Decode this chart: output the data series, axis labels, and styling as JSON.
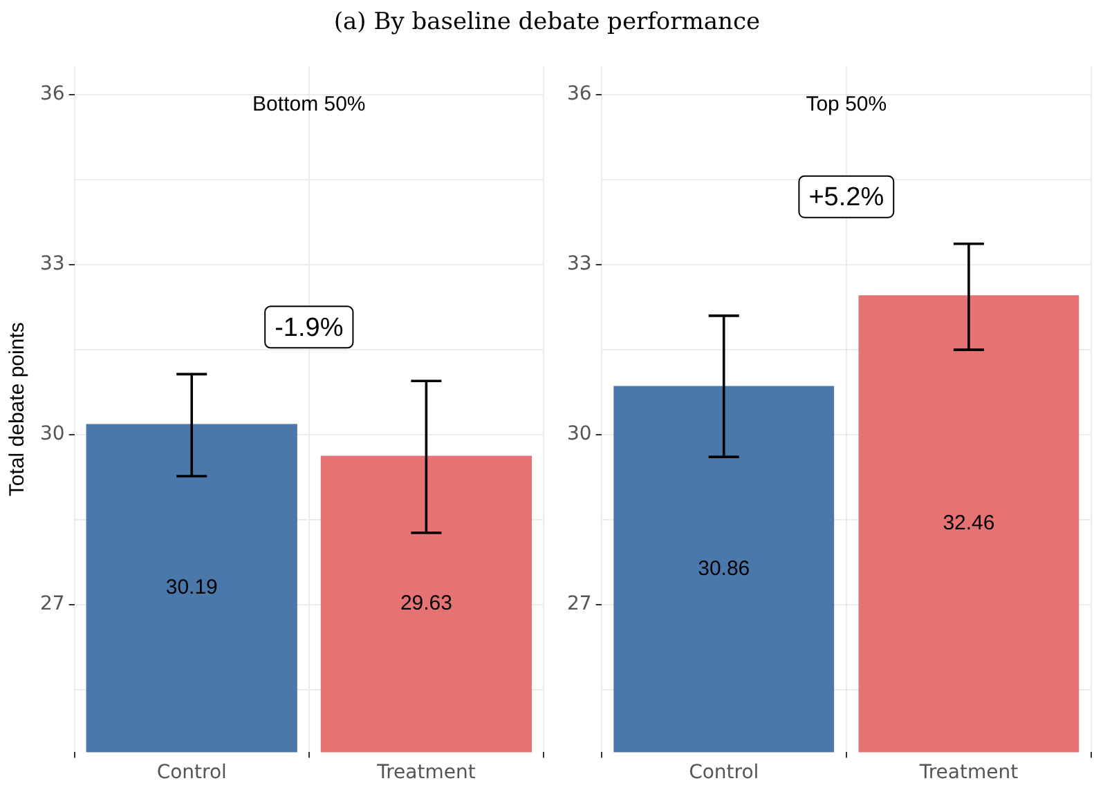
{
  "chart_data": [
    {
      "type": "bar",
      "title": "(a) By baseline debate performance",
      "subtitle": "Bottom 50%",
      "ylabel": "Total debate points",
      "categories": [
        "Control",
        "Treatment"
      ],
      "values": [
        30.19,
        29.63
      ],
      "colors": [
        "#4a78ab",
        "#e57373"
      ],
      "errors": [
        [
          29.27,
          31.07
        ],
        [
          28.27,
          30.95
        ]
      ],
      "ylim": [
        24.4,
        36.5
      ],
      "yticks": [
        {
          "value": 25.5,
          "label": null
        },
        27,
        {
          "value": 28.5,
          "label": null
        },
        30,
        {
          "value": 31.5,
          "label": null
        },
        33,
        {
          "value": 34.5,
          "label": null
        },
        36
      ],
      "grid": true,
      "data_labels": true,
      "annotations": [
        "-1.9%"
      ]
    },
    {
      "type": "bar",
      "subtitle": "Top 50%",
      "categories": [
        "Control",
        "Treatment"
      ],
      "values": [
        30.86,
        32.46
      ],
      "colors": [
        "#4a78ab",
        "#e57373"
      ],
      "errors": [
        [
          29.61,
          32.1
        ],
        [
          31.5,
          33.37
        ]
      ],
      "ylim": [
        24.4,
        36.5
      ],
      "yticks": [
        {
          "value": 25.5,
          "label": null
        },
        27,
        {
          "value": 28.5,
          "label": null
        },
        30,
        {
          "value": 31.5,
          "label": null
        },
        33,
        {
          "value": 34.5,
          "label": null
        },
        36
      ],
      "grid": true,
      "data_labels": true,
      "annotations": [
        "+5.2%"
      ]
    }
  ]
}
